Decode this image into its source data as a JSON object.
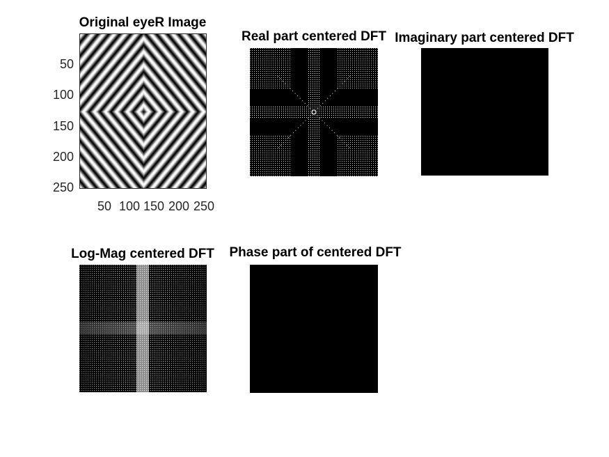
{
  "figure": {
    "subplots": [
      {
        "id": "original",
        "title": "Original eyeR Image"
      },
      {
        "id": "real",
        "title": "Real part centered DFT"
      },
      {
        "id": "imag",
        "title": "Imaginary part centered DFT"
      },
      {
        "id": "logmag",
        "title": "Log-Mag centered DFT"
      },
      {
        "id": "phase",
        "title": "Phase part of centered DFT"
      }
    ]
  },
  "chart_data": [
    {
      "type": "heatmap",
      "title": "Original eyeR Image",
      "colormap": "gray",
      "xlim": [
        1,
        256
      ],
      "ylim": [
        1,
        256
      ],
      "x_ticks": [
        50,
        100,
        150,
        200,
        250
      ],
      "y_ticks": [
        50,
        100,
        150,
        200,
        250
      ],
      "x_tick_labels": [
        "50",
        "100",
        "150",
        "200",
        "250"
      ],
      "y_tick_labels": [
        "50",
        "100",
        "150",
        "200",
        "250"
      ],
      "content": "concentric diamond stripe pattern centered at (128,128)"
    },
    {
      "type": "heatmap",
      "title": "Real part centered DFT",
      "colormap": "gray",
      "axis": "off",
      "background": "#000000"
    },
    {
      "type": "heatmap",
      "title": "Imaginary part centered DFT",
      "colormap": "gray",
      "axis": "off",
      "background": "#000000"
    },
    {
      "type": "heatmap",
      "title": "Log-Mag centered DFT",
      "colormap": "gray",
      "axis": "off",
      "background": "#000000"
    },
    {
      "type": "heatmap",
      "title": "Phase part of centered DFT",
      "colormap": "gray",
      "axis": "off",
      "background": "#000000"
    }
  ]
}
